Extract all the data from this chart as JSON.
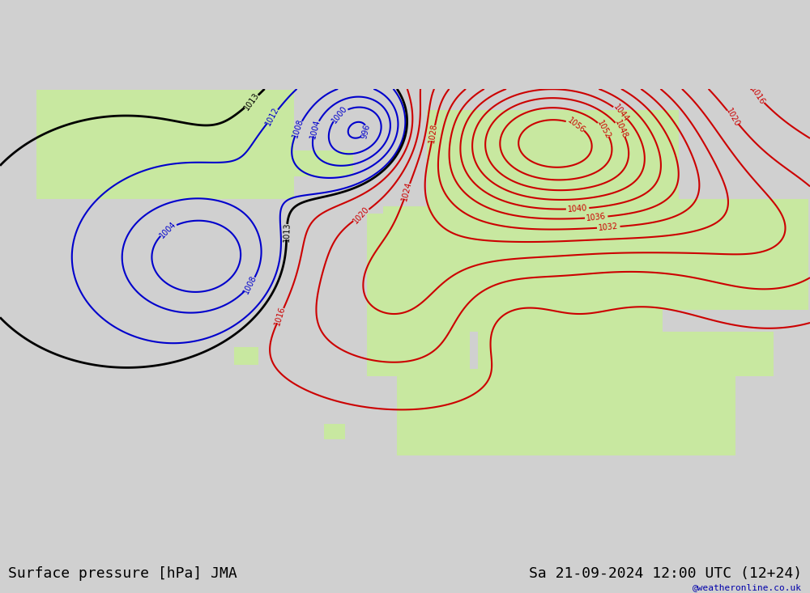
{
  "title_left": "Surface pressure [hPa] JMA",
  "title_right": "Sa 21-09-2024 12:00 UTC (12+24)",
  "watermark": "@weatheronline.co.uk",
  "background_color": "#e8e8e8",
  "land_color": "#c8e8c8",
  "sea_color": "#e0e0e0",
  "isobar_colors": {
    "red": "#ff0000",
    "blue": "#0000ff",
    "black": "#000000"
  },
  "font_size_title": 13,
  "font_size_labels": 9,
  "font_size_watermark": 8
}
